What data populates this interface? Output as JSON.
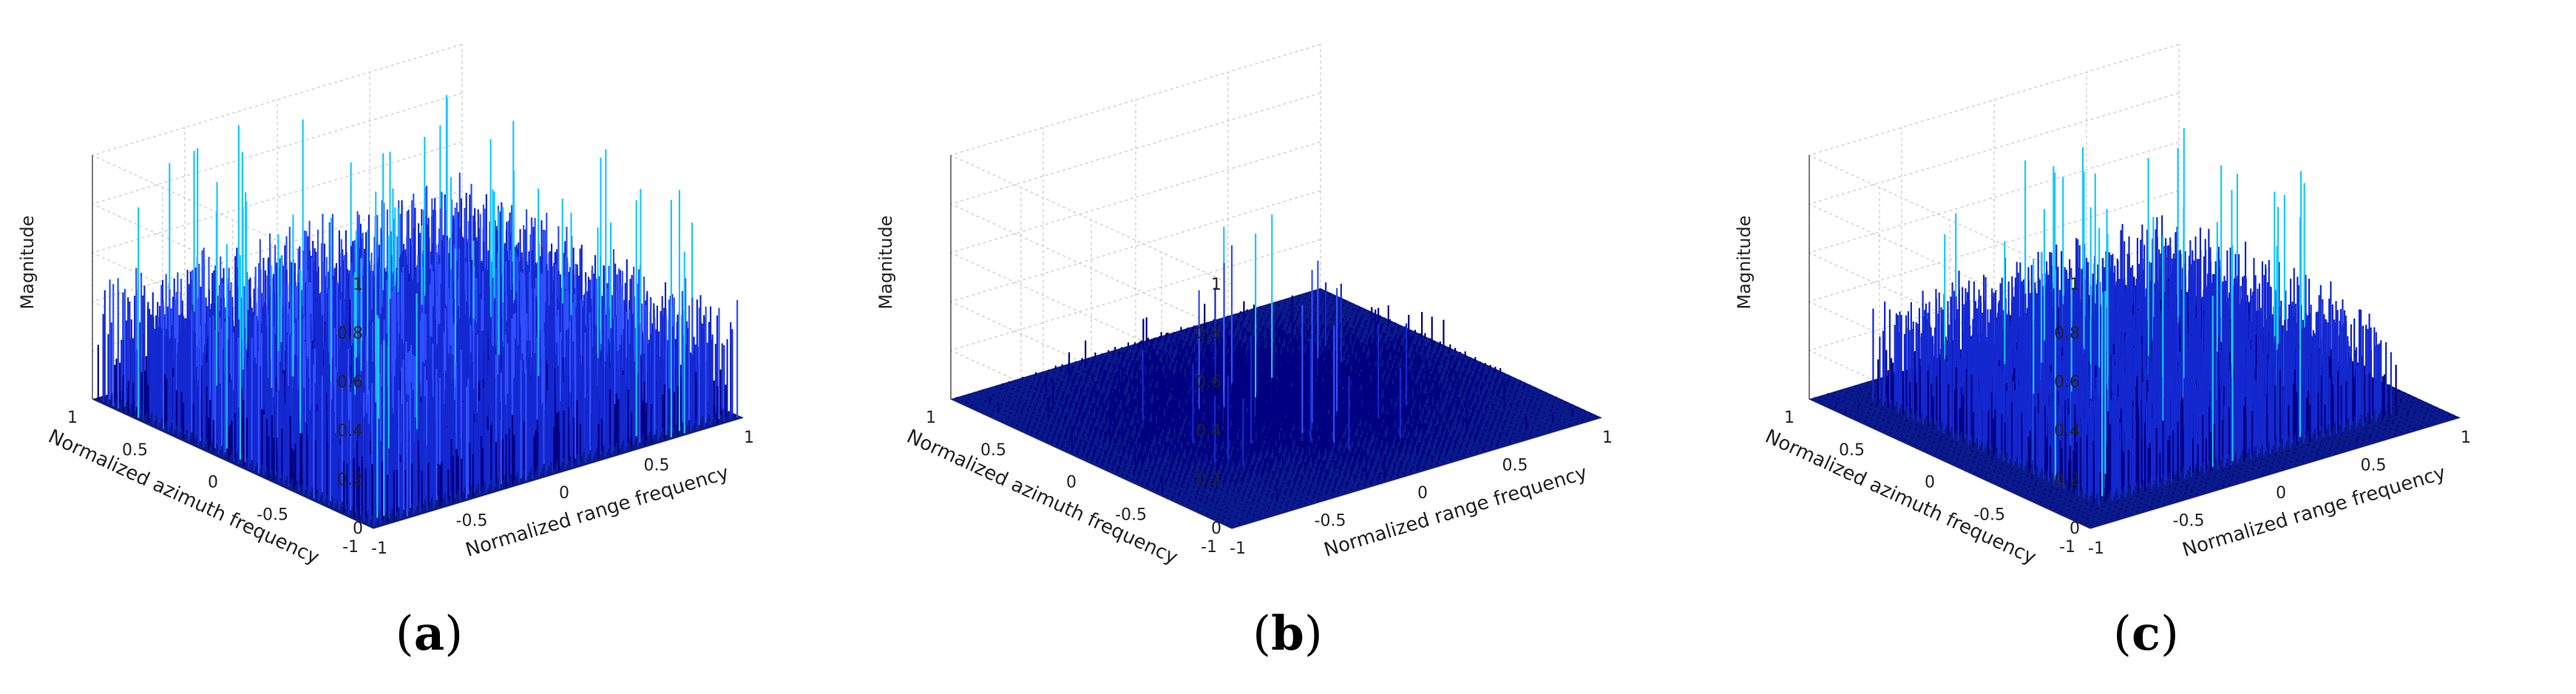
{
  "figure": {
    "panels": [
      {
        "id": "a",
        "label_open": "(",
        "label_letter": "a",
        "label_close": ")"
      },
      {
        "id": "b",
        "label_open": "(",
        "label_letter": "b",
        "label_close": ")"
      },
      {
        "id": "c",
        "label_open": "(",
        "label_letter": "c",
        "label_close": ")"
      }
    ]
  },
  "chart_data": [
    {
      "type": "surface",
      "title": "",
      "xlabel": "Normalized range frequency",
      "ylabel": "Normalized azimuth frequency",
      "zlabel": "Magnitude",
      "xlim": [
        -1,
        1
      ],
      "ylim": [
        -1,
        1
      ],
      "zlim": [
        0,
        1
      ],
      "x_ticks": [
        "-1",
        "-0.5",
        "0",
        "0.5",
        "1"
      ],
      "y_ticks": [
        "1",
        "0.5",
        "0",
        "-0.5",
        "-1"
      ],
      "z_ticks": [
        "0",
        "0.2",
        "0.4",
        "0.6",
        "0.8",
        "1"
      ],
      "grid": true,
      "colormap": [
        "#000080",
        "#1428d0",
        "#3050ff",
        "#19c8ff"
      ],
      "surface_profile": "uniform noise, peaks up to about 1.0 across the whole plane",
      "peak_magnitude": 1.0,
      "typical_magnitude": 0.35
    },
    {
      "type": "surface",
      "title": "",
      "xlabel": "Normalized range frequency",
      "ylabel": "Normalized azimuth frequency",
      "zlabel": "Magnitude",
      "xlim": [
        -1,
        1
      ],
      "ylim": [
        -1,
        1
      ],
      "zlim": [
        0,
        1
      ],
      "x_ticks": [
        "-1",
        "-0.5",
        "0",
        "0.5",
        "1"
      ],
      "y_ticks": [
        "1",
        "0.5",
        "0",
        "-0.5",
        "-1"
      ],
      "z_ticks": [
        "0",
        "0.2",
        "0.4",
        "0.6",
        "0.8",
        "1"
      ],
      "grid": true,
      "colormap": [
        "#000080",
        "#1428d0",
        "#3050ff",
        "#19c8ff"
      ],
      "surface_profile": "noise concentrated near the center, tapering to near zero at edges",
      "peak_magnitude": 0.97,
      "typical_magnitude": 0.15
    },
    {
      "type": "surface",
      "title": "",
      "xlabel": "Normalized range frequency",
      "ylabel": "Normalized azimuth frequency",
      "zlabel": "Magnitude",
      "xlim": [
        -1,
        1
      ],
      "ylim": [
        -1,
        1
      ],
      "zlim": [
        0,
        1
      ],
      "x_ticks": [
        "-1",
        "-0.5",
        "0",
        "0.5",
        "1"
      ],
      "y_ticks": [
        "1",
        "0.5",
        "0",
        "-0.5",
        "-1"
      ],
      "z_ticks": [
        "0",
        "0.2",
        "0.4",
        "0.6",
        "0.8",
        "1"
      ],
      "grid": true,
      "colormap": [
        "#000080",
        "#1428d0",
        "#3050ff",
        "#19c8ff"
      ],
      "surface_profile": "noise inside a central square band, zero near the outer border",
      "peak_magnitude": 0.95,
      "typical_magnitude": 0.3
    }
  ]
}
